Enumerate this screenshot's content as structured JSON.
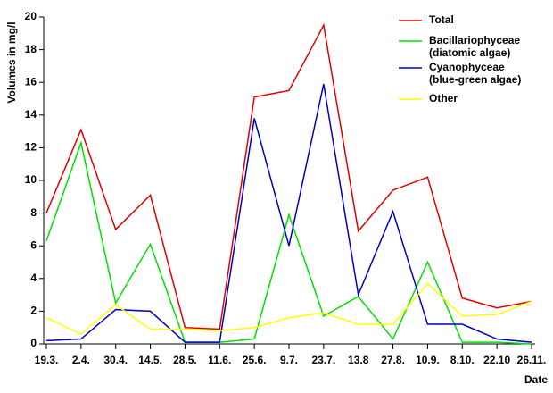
{
  "chart_data": {
    "type": "line",
    "y_label": "Volumes in mg/l",
    "x_label": "Date",
    "categories": [
      "19.3.",
      "2.4.",
      "30.4.",
      "14.5.",
      "28.5.",
      "11.6.",
      "25.6.",
      "9.7.",
      "23.7.",
      "13.8",
      "27.8.",
      "10.9.",
      "8.10.",
      "22.10",
      "26.11."
    ],
    "series": [
      {
        "name": "Total",
        "color": "#e00000",
        "values": [
          8.0,
          13.1,
          7.0,
          9.1,
          1.0,
          0.9,
          15.1,
          15.5,
          19.5,
          6.9,
          9.4,
          10.2,
          2.8,
          2.2,
          2.6
        ]
      },
      {
        "name": "Bacillariophyceae\n(diatomic algae)",
        "color": "#00e000",
        "values": [
          6.3,
          12.3,
          2.5,
          6.1,
          0.1,
          0.1,
          0.3,
          7.9,
          1.7,
          2.9,
          0.3,
          5.0,
          0.1,
          0.1,
          0
        ]
      },
      {
        "name": "Cyanophyceae\n(blue-green algae)",
        "color": "#0000c0",
        "values": [
          0.2,
          0.3,
          2.1,
          2.0,
          0.1,
          0.1,
          13.8,
          6.0,
          15.9,
          3.0,
          8.1,
          1.2,
          1.2,
          0.3,
          0.1
        ]
      },
      {
        "name": "Other",
        "color": "#ffff00",
        "values": [
          1.6,
          0.6,
          2.4,
          0.9,
          0.9,
          0.8,
          1.0,
          1.6,
          1.9,
          1.2,
          1.2,
          3.7,
          1.7,
          1.8,
          2.6
        ]
      }
    ],
    "ylim": [
      0,
      20
    ],
    "yticks": [
      0,
      2,
      4,
      6,
      8,
      10,
      12,
      14,
      16,
      18,
      20
    ],
    "grid": false,
    "legend": "top-right"
  }
}
